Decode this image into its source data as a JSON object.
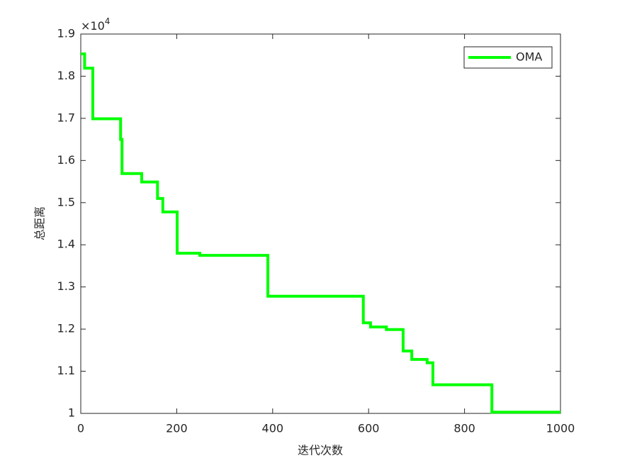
{
  "chart_data": {
    "type": "step",
    "xlabel": "迭代次数",
    "ylabel": "总距离",
    "y_multiplier": {
      "base": "×10",
      "exponent": "4"
    },
    "x": [
      0,
      8,
      25,
      83,
      86,
      127,
      160,
      171,
      201,
      248,
      390,
      589,
      604,
      637,
      672,
      690,
      722,
      734,
      857,
      1000
    ],
    "series": [
      {
        "name": "OMA",
        "color": "#00ff00",
        "values": [
          1.853,
          1.819,
          1.699,
          1.65,
          1.569,
          1.549,
          1.51,
          1.478,
          1.38,
          1.375,
          1.278,
          1.215,
          1.205,
          1.199,
          1.148,
          1.128,
          1.12,
          1.068,
          1.003,
          1.003
        ]
      }
    ],
    "xlim": [
      0,
      1000
    ],
    "xticks": [
      0,
      200,
      400,
      600,
      800,
      1000
    ],
    "ylim": [
      1,
      1.9
    ],
    "yticks": [
      1,
      1.1,
      1.2,
      1.3,
      1.4,
      1.5,
      1.6,
      1.7,
      1.8,
      1.9
    ],
    "grid": false,
    "legend": "top-right"
  }
}
